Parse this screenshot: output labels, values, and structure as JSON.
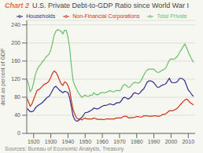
{
  "chart_data": {
    "type": "line",
    "title": "Chart 2",
    "subtitle": "U.S. Private Debt-to-GDP Ratio since World War I",
    "ylabel": "debt as percent of GDP",
    "annotations": [
      "Sources: Bureau of Economic Analysis, Treasury"
    ],
    "x": [
      1916,
      1917,
      1918,
      1919,
      1920,
      1921,
      1922,
      1923,
      1924,
      1925,
      1926,
      1927,
      1928,
      1929,
      1930,
      1931,
      1932,
      1933,
      1934,
      1935,
      1936,
      1937,
      1938,
      1939,
      1940,
      1941,
      1942,
      1943,
      1944,
      1945,
      1946,
      1947,
      1948,
      1949,
      1950,
      1951,
      1952,
      1953,
      1954,
      1955,
      1956,
      1957,
      1958,
      1959,
      1960,
      1961,
      1962,
      1963,
      1964,
      1965,
      1966,
      1967,
      1968,
      1969,
      1970,
      1971,
      1972,
      1973,
      1974,
      1975,
      1976,
      1977,
      1978,
      1979,
      1980,
      1981,
      1982,
      1983,
      1984,
      1985,
      1986,
      1987,
      1988,
      1989,
      1990,
      1991,
      1992,
      1993,
      1994,
      1995,
      1996,
      1997,
      1998,
      1999,
      2000,
      2001,
      2002,
      2003,
      2004,
      2005,
      2006,
      2007,
      2008,
      2009,
      2010,
      2011,
      2012,
      2013
    ],
    "series": [
      {
        "name": "Total Private",
        "color": "#6abf6a",
        "values": [
          120,
          110,
          92,
          98,
          112,
          130,
          140,
          148,
          152,
          158,
          162,
          168,
          172,
          175,
          185,
          200,
          218,
          226,
          230,
          228,
          226,
          220,
          228,
          228,
          212,
          188,
          148,
          116,
          106,
          98,
          90,
          85,
          80,
          82,
          85,
          82,
          82,
          85,
          84,
          90,
          87,
          85,
          87,
          90,
          90,
          90,
          90,
          92,
          94,
          94,
          92,
          92,
          95,
          95,
          94,
          98,
          106,
          108,
          106,
          102,
          102,
          108,
          111,
          113,
          112,
          111,
          114,
          120,
          128,
          135,
          140,
          142,
          142,
          142,
          142,
          138,
          135,
          135,
          138,
          140,
          142,
          145,
          154,
          162,
          165,
          164,
          165,
          168,
          172,
          180,
          185,
          192,
          198,
          190,
          180,
          172,
          164,
          157
        ]
      },
      {
        "name": "Households",
        "color": "#2e2e8c",
        "values": [
          55,
          52,
          48,
          48,
          50,
          56,
          60,
          63,
          65,
          68,
          72,
          76,
          80,
          82,
          88,
          95,
          102,
          104,
          100,
          96,
          93,
          90,
          93,
          92,
          90,
          78,
          58,
          38,
          30,
          27,
          28,
          32,
          35,
          40,
          46,
          46,
          48,
          50,
          52,
          56,
          55,
          54,
          55,
          58,
          60,
          62,
          62,
          63,
          65,
          65,
          63,
          64,
          67,
          68,
          68,
          72,
          78,
          80,
          78,
          76,
          78,
          82,
          88,
          90,
          88,
          87,
          90,
          95,
          98,
          105,
          113,
          116,
          116,
          115,
          112,
          107,
          102,
          102,
          105,
          107,
          108,
          110,
          116,
          122,
          114,
          112,
          112,
          113,
          116,
          122,
          122,
          120,
          116,
          106,
          96,
          92,
          86,
          82
        ]
      },
      {
        "name": "Non-Financial Corporations",
        "color": "#cc3311",
        "values": [
          78,
          70,
          60,
          65,
          75,
          85,
          95,
          97,
          100,
          104,
          108,
          110,
          112,
          116,
          124,
          133,
          138,
          135,
          128,
          118,
          110,
          106,
          114,
          112,
          106,
          95,
          72,
          52,
          42,
          34,
          32,
          32,
          30,
          32,
          34,
          32,
          32,
          32,
          32,
          34,
          33,
          31,
          31,
          31,
          31,
          30,
          32,
          32,
          32,
          32,
          32,
          32,
          34,
          34,
          34,
          34,
          37,
          38,
          38,
          35,
          34,
          35,
          35,
          36,
          37,
          37,
          36,
          36,
          39,
          39,
          39,
          38,
          38,
          38,
          39,
          39,
          38,
          38,
          39,
          42,
          42,
          44,
          47,
          50,
          50,
          50,
          52,
          54,
          57,
          62,
          66,
          70,
          74,
          76,
          73,
          68,
          66,
          63
        ]
      }
    ],
    "xlim": [
      1916,
      2014
    ],
    "xticks": [
      1920,
      1930,
      1940,
      1950,
      1960,
      1970,
      1980,
      1990,
      2000,
      2010
    ],
    "ylim": [
      0,
      250
    ],
    "yticks": [
      0,
      40,
      80,
      120,
      160,
      200,
      240
    ],
    "grid": true,
    "legend": "upper right"
  }
}
